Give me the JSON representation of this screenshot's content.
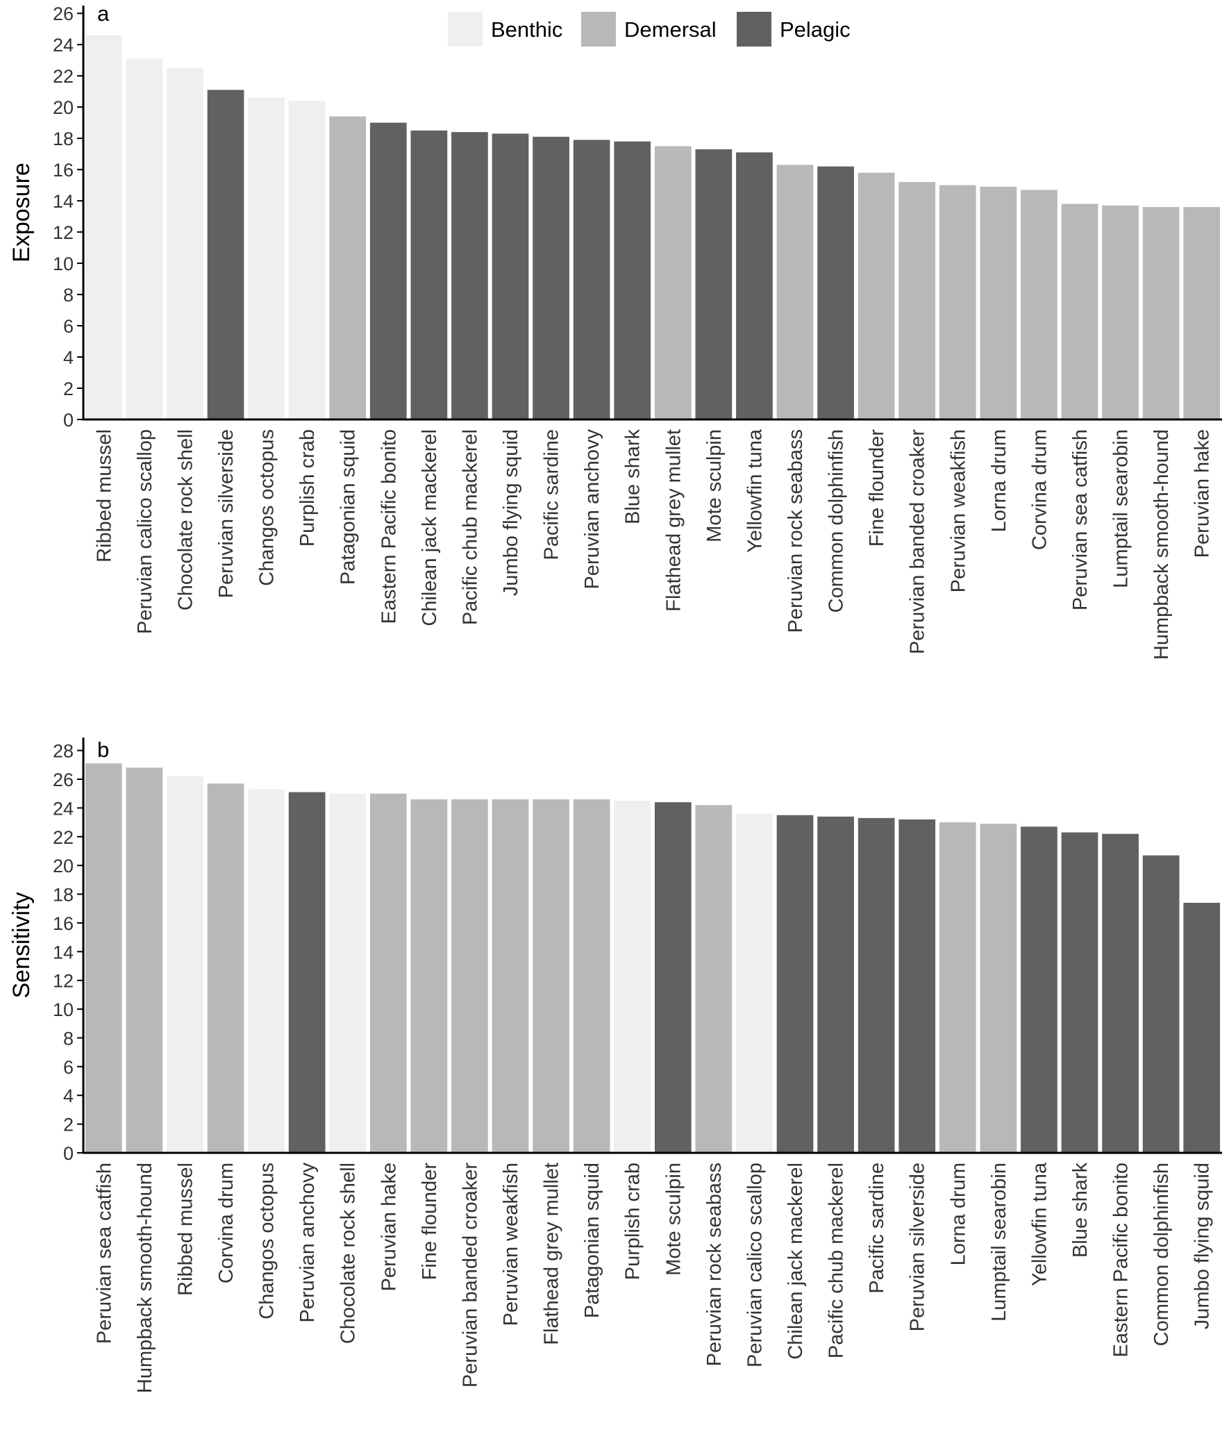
{
  "chart_data": [
    {
      "type": "bar",
      "panel": "a",
      "ylabel": "Exposure",
      "xlabel": "",
      "ylim": [
        0,
        26.5
      ],
      "yticks": [
        0,
        2,
        4,
        6,
        8,
        10,
        12,
        14,
        16,
        18,
        20,
        22,
        24,
        26
      ],
      "grid": false,
      "categories": [
        "Ribbed mussel",
        "Peruvian calico scallop",
        "Chocolate rock shell",
        "Peruvian silverside",
        "Changos octopus",
        "Purplish crab",
        "Patagonian squid",
        "Eastern Pacific bonito",
        "Chilean jack mackerel",
        "Pacific chub mackerel",
        "Jumbo flying squid",
        "Pacific sardine",
        "Peruvian anchovy",
        "Blue shark",
        "Flathead grey mullet",
        "Mote sculpin",
        "Yellowfin tuna",
        "Peruvian rock seabass",
        "Common dolphinfish",
        "Fine flounder",
        "Peruvian banded croaker",
        "Peruvian weakfish",
        "Lorna drum",
        "Corvina drum",
        "Peruvian sea catfish",
        "Lumptail searobin",
        "Humpback smooth-hound",
        "Peruvian hake"
      ],
      "values": [
        24.6,
        23.1,
        22.5,
        21.1,
        20.6,
        20.4,
        19.4,
        19.0,
        18.5,
        18.4,
        18.3,
        18.1,
        17.9,
        17.8,
        17.5,
        17.3,
        17.1,
        16.3,
        16.2,
        15.8,
        15.2,
        15.0,
        14.9,
        14.7,
        13.8,
        13.7,
        13.6,
        13.6
      ],
      "groups": [
        "Benthic",
        "Benthic",
        "Benthic",
        "Pelagic",
        "Benthic",
        "Benthic",
        "Demersal",
        "Pelagic",
        "Pelagic",
        "Pelagic",
        "Pelagic",
        "Pelagic",
        "Pelagic",
        "Pelagic",
        "Demersal",
        "Pelagic",
        "Pelagic",
        "Demersal",
        "Pelagic",
        "Demersal",
        "Demersal",
        "Demersal",
        "Demersal",
        "Demersal",
        "Demersal",
        "Demersal",
        "Demersal",
        "Demersal"
      ]
    },
    {
      "type": "bar",
      "panel": "b",
      "ylabel": "Sensitivity",
      "xlabel": "",
      "ylim": [
        0,
        28.9
      ],
      "yticks": [
        0,
        2,
        4,
        6,
        8,
        10,
        12,
        14,
        16,
        18,
        20,
        22,
        24,
        26,
        28
      ],
      "grid": false,
      "categories": [
        "Peruvian sea catfish",
        "Humpback smooth-hound",
        "Ribbed mussel",
        "Corvina drum",
        "Changos octopus",
        "Peruvian anchovy",
        "Chocolate rock shell",
        "Peruvian hake",
        "Fine flounder",
        "Peruvian banded croaker",
        "Peruvian weakfish",
        "Flathead grey mullet",
        "Patagonian squid",
        "Purplish crab",
        "Mote sculpin",
        "Peruvian rock seabass",
        "Peruvian calico scallop",
        "Chilean jack mackerel",
        "Pacific chub mackerel",
        "Pacific sardine",
        "Peruvian silverside",
        "Lorna drum",
        "Lumptail searobin",
        "Yellowfin tuna",
        "Blue shark",
        "Eastern Pacific bonito",
        "Common dolphinfish",
        "Jumbo flying squid"
      ],
      "values": [
        27.1,
        26.8,
        26.2,
        25.7,
        25.3,
        25.1,
        25.0,
        25.0,
        24.6,
        24.6,
        24.6,
        24.6,
        24.6,
        24.5,
        24.4,
        24.2,
        23.6,
        23.5,
        23.4,
        23.3,
        23.2,
        23.0,
        22.9,
        22.7,
        22.3,
        22.2,
        20.7,
        17.4
      ],
      "groups": [
        "Demersal",
        "Demersal",
        "Benthic",
        "Demersal",
        "Benthic",
        "Pelagic",
        "Benthic",
        "Demersal",
        "Demersal",
        "Demersal",
        "Demersal",
        "Demersal",
        "Demersal",
        "Benthic",
        "Pelagic",
        "Demersal",
        "Benthic",
        "Pelagic",
        "Pelagic",
        "Pelagic",
        "Pelagic",
        "Demersal",
        "Demersal",
        "Pelagic",
        "Pelagic",
        "Pelagic",
        "Pelagic",
        "Pelagic"
      ]
    }
  ],
  "legend": {
    "placement": "top-center",
    "items": [
      {
        "label": "Benthic",
        "color": "#efefef"
      },
      {
        "label": "Demersal",
        "color": "#b8b8b8"
      },
      {
        "label": "Pelagic",
        "color": "#616161"
      }
    ]
  },
  "colors": {
    "Benthic": "#efefef",
    "Demersal": "#b8b8b8",
    "Pelagic": "#616161",
    "axis": "#000000"
  }
}
